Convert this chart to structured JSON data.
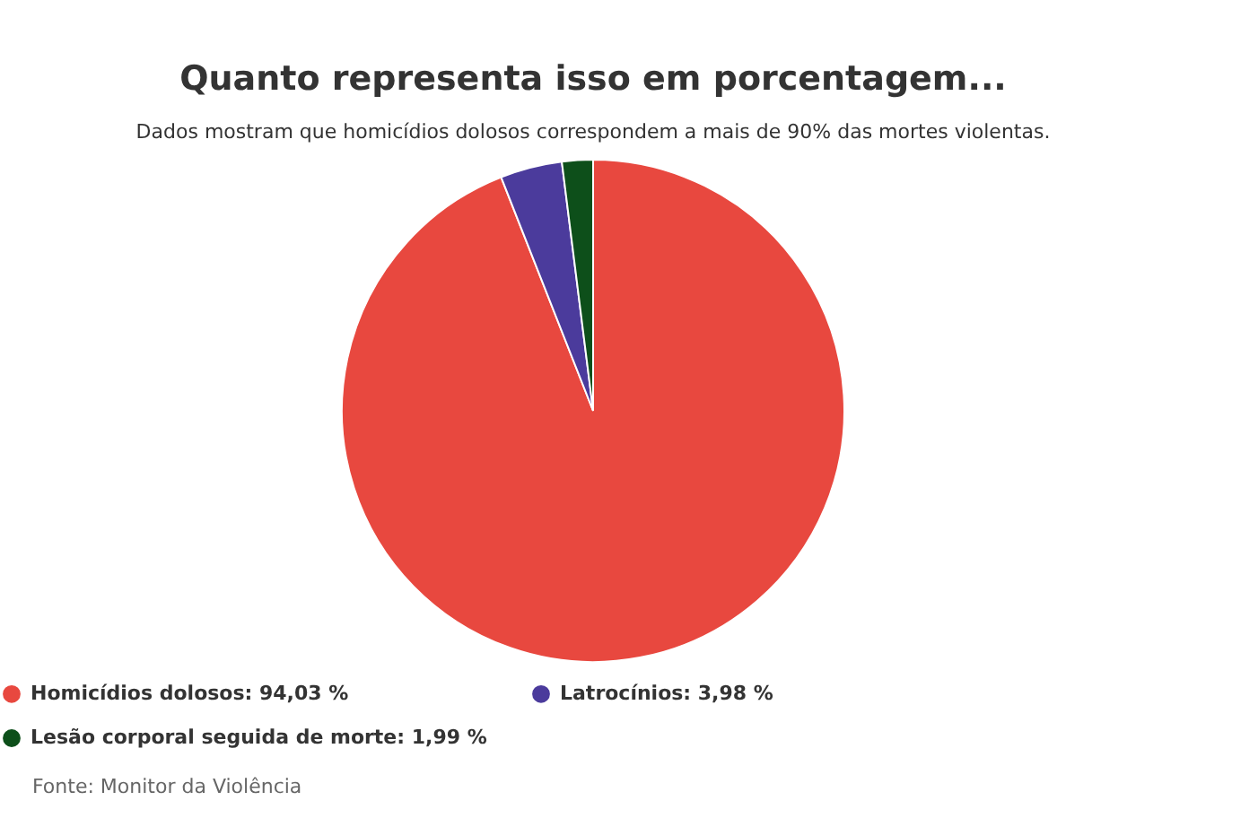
{
  "chart_data": {
    "type": "pie",
    "title": "Quanto representa isso em porcentagem...",
    "subtitle": "Dados mostram que homicídios dolosos correspondem a mais de 90% das mortes violentas.",
    "categories": [
      "Homicídios dolosos: 94,03 %",
      "Latrocínios: 3,98 %",
      "Lesão corporal seguida de morte: 1,99 %"
    ],
    "values": [
      94.03,
      3.98,
      1.99
    ],
    "colors": [
      "#e8483f",
      "#4b3b9c",
      "#0d4f1a"
    ],
    "legend": "bottom",
    "annotations": [
      "Fonte: Monitor da Violência"
    ]
  }
}
